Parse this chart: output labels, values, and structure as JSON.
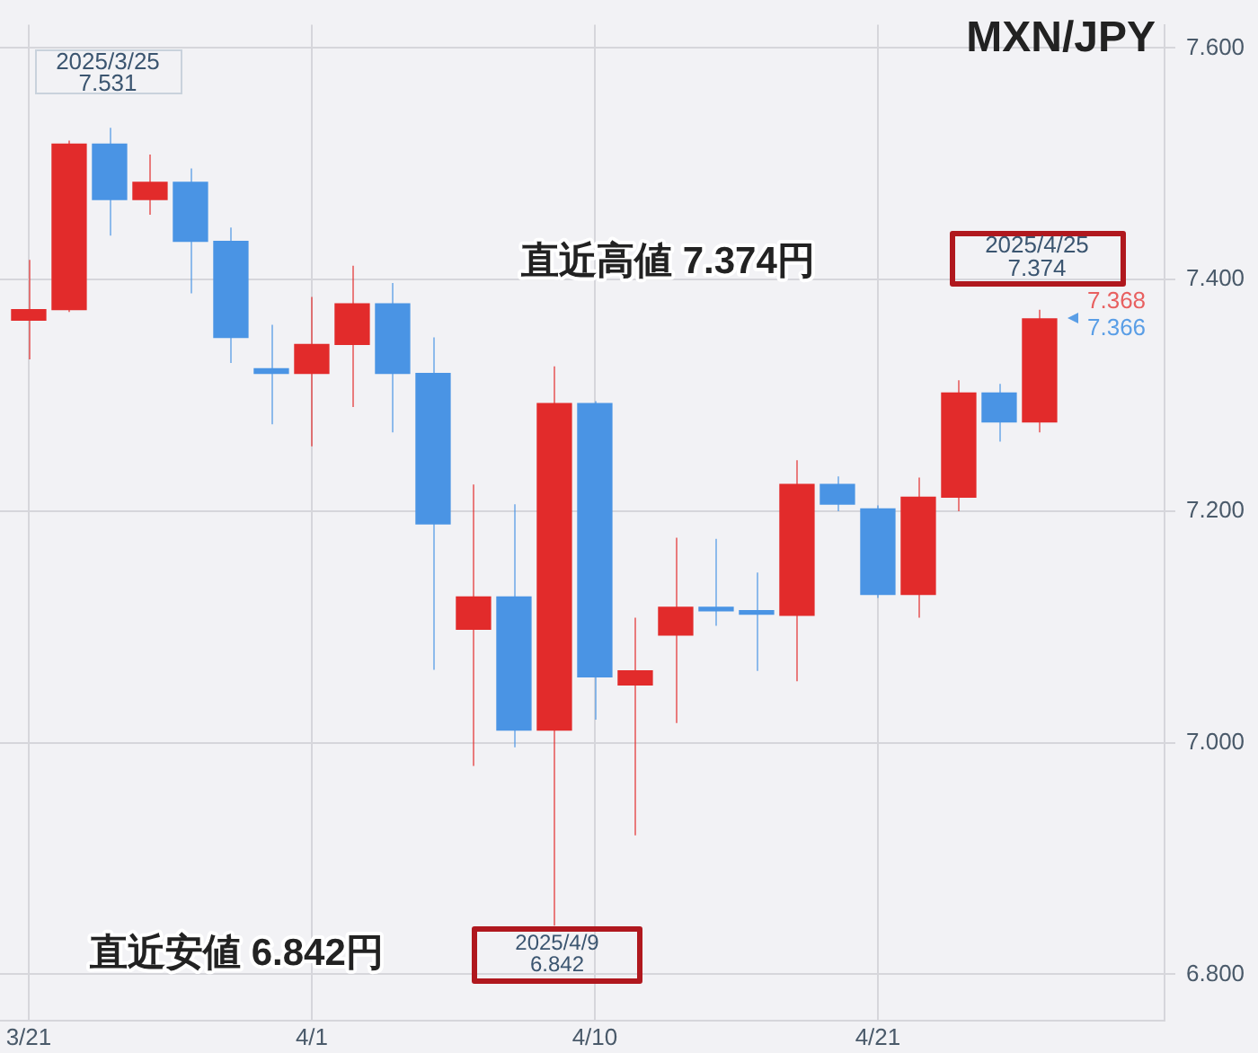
{
  "chart_data": {
    "type": "candlestick",
    "title": "MXN/JPY",
    "categories": [
      "3/21",
      null,
      null,
      null,
      null,
      null,
      null,
      "4/1",
      null,
      null,
      null,
      null,
      null,
      null,
      "4/10",
      null,
      null,
      null,
      null,
      null,
      null,
      "4/21",
      null,
      null,
      null,
      null
    ],
    "ohlc": [
      [
        7.365,
        7.417,
        7.331,
        7.374
      ],
      [
        7.374,
        7.52,
        7.372,
        7.517
      ],
      [
        7.517,
        7.531,
        7.438,
        7.469
      ],
      [
        7.469,
        7.508,
        7.456,
        7.484
      ],
      [
        7.484,
        7.496,
        7.388,
        7.433
      ],
      [
        7.433,
        7.445,
        7.328,
        7.35
      ],
      [
        7.323,
        7.361,
        7.275,
        7.319
      ],
      [
        7.319,
        7.385,
        7.256,
        7.344
      ],
      [
        7.344,
        7.412,
        7.29,
        7.379
      ],
      [
        7.379,
        7.397,
        7.268,
        7.319
      ],
      [
        7.319,
        7.35,
        7.063,
        7.189
      ],
      [
        7.098,
        7.223,
        6.98,
        7.126
      ],
      [
        7.126,
        7.206,
        6.996,
        7.011
      ],
      [
        7.011,
        7.325,
        6.842,
        7.293
      ],
      [
        7.293,
        7.295,
        7.02,
        7.057
      ],
      [
        7.05,
        7.108,
        6.92,
        7.062
      ],
      [
        7.093,
        7.177,
        7.017,
        7.117
      ],
      [
        7.117,
        7.176,
        7.101,
        7.114
      ],
      [
        7.114,
        7.147,
        7.062,
        7.111
      ],
      [
        7.11,
        7.244,
        7.053,
        7.223
      ],
      [
        7.223,
        7.23,
        7.2,
        7.206
      ],
      [
        7.202,
        7.205,
        7.125,
        7.128
      ],
      [
        7.128,
        7.229,
        7.108,
        7.212
      ],
      [
        7.212,
        7.313,
        7.2,
        7.302
      ],
      [
        7.302,
        7.31,
        7.26,
        7.277
      ],
      [
        7.277,
        7.374,
        7.268,
        7.366
      ]
    ],
    "colors": [
      "#e22b2b",
      "#e22b2b",
      "#4a94e4",
      "#e22b2b",
      "#4a94e4",
      "#4a94e4",
      "#4a94e4",
      "#e22b2b",
      "#e22b2b",
      "#4a94e4",
      "#4a94e4",
      "#e22b2b",
      "#4a94e4",
      "#e22b2b",
      "#4a94e4",
      "#e22b2b",
      "#e22b2b",
      "#4a94e4",
      "#4a94e4",
      "#e22b2b",
      "#4a94e4",
      "#4a94e4",
      "#e22b2b",
      "#e22b2b",
      "#4a94e4",
      "#e22b2b"
    ],
    "ylim": [
      6.76,
      7.62
    ],
    "yticks": [
      {
        "value": 6.8,
        "label": "6.800"
      },
      {
        "value": 7.0,
        "label": "7.000"
      },
      {
        "value": 7.2,
        "label": "7.200"
      },
      {
        "value": 7.4,
        "label": "7.400"
      },
      {
        "value": 7.6,
        "label": "7.600"
      }
    ],
    "grid": true,
    "annotations": [
      "2025/3/25",
      "7.531",
      "直近高値 7.374円",
      "2025/4/25",
      "7.374",
      "直近安値 6.842円",
      "2025/4/9",
      "6.842",
      "7.368",
      "7.366"
    ]
  }
}
